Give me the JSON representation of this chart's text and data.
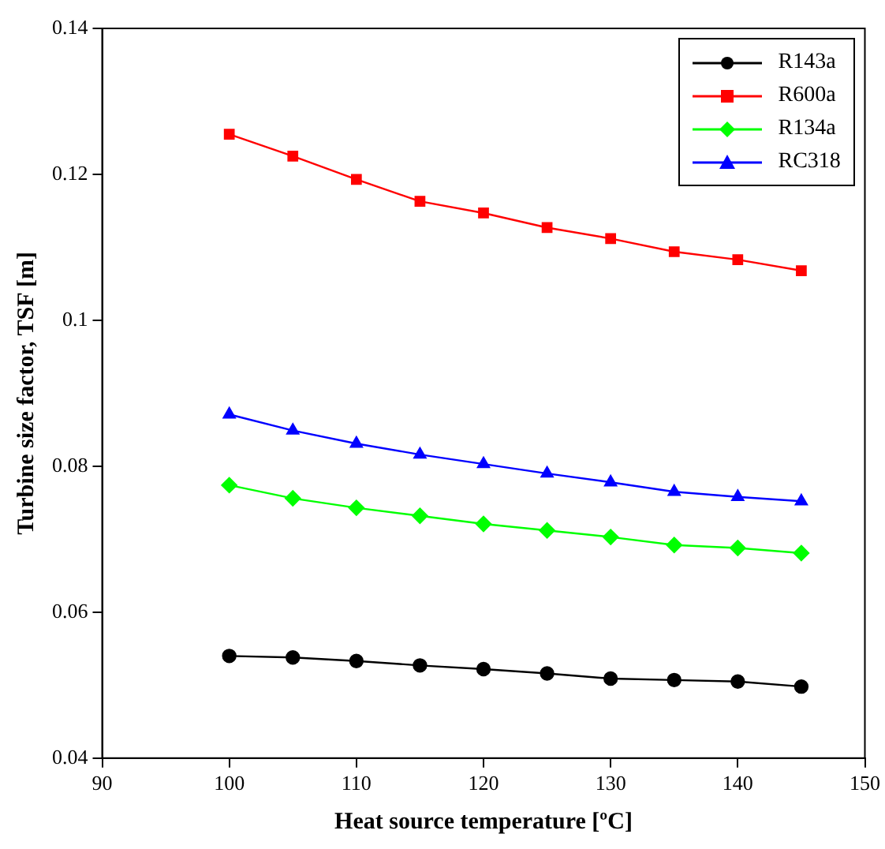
{
  "chart_data": {
    "type": "line",
    "xlabel": "Heat source temperature [ºC]",
    "ylabel": "Turbine size factor, TSF [m]",
    "x": [
      100,
      105,
      110,
      115,
      120,
      125,
      130,
      135,
      140,
      145
    ],
    "xlim": [
      90,
      150
    ],
    "xticks": [
      90,
      100,
      110,
      120,
      130,
      140,
      150
    ],
    "ylim": [
      0.04,
      0.14
    ],
    "yticks": [
      0.04,
      0.06,
      0.08,
      {
        "value": 0.1,
        "label": "0.1"
      },
      0.12,
      0.14
    ],
    "grid": false,
    "legend": "top right",
    "line_style": "solid",
    "series": [
      {
        "name": "R143a",
        "color": "#000000",
        "marker": "circle",
        "values": [
          0.054,
          0.0538,
          0.0533,
          0.0527,
          0.0522,
          0.0516,
          0.0509,
          0.0507,
          0.0505,
          0.0498
        ]
      },
      {
        "name": "R600a",
        "color": "#ff0000",
        "marker": "square",
        "values": [
          0.1255,
          0.1225,
          0.1193,
          0.1163,
          0.1147,
          0.1127,
          0.1112,
          0.1094,
          0.1083,
          0.1068
        ]
      },
      {
        "name": "R134a",
        "color": "#00ff00",
        "marker": "diamond",
        "values": [
          0.0774,
          0.0756,
          0.0743,
          0.0732,
          0.0721,
          0.0712,
          0.0703,
          0.0692,
          0.0688,
          0.0681
        ]
      },
      {
        "name": "RC318",
        "color": "#0000ff",
        "marker": "triangle",
        "values": [
          0.0871,
          0.0849,
          0.0831,
          0.0816,
          0.0803,
          0.079,
          0.0778,
          0.0765,
          0.0758,
          0.0752
        ]
      }
    ]
  }
}
